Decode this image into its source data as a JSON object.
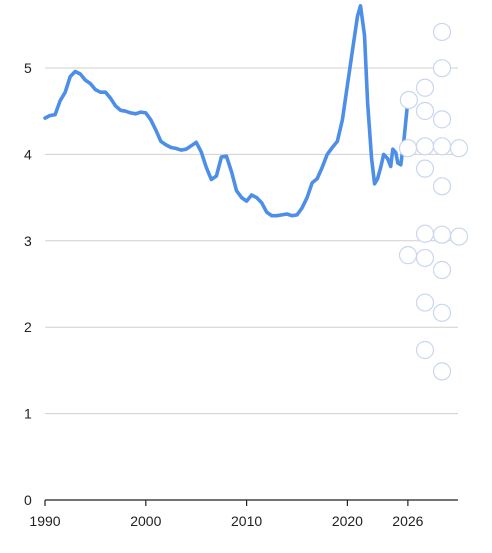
{
  "chart_data": {
    "type": "line",
    "title": "",
    "xlabel": "",
    "ylabel": "",
    "xlim": [
      1990,
      2026.5
    ],
    "ylim": [
      0,
      5.75
    ],
    "grid": true,
    "x_ticks": [
      {
        "value": 1990,
        "label": "1990"
      },
      {
        "value": 2000,
        "label": "2000"
      },
      {
        "value": 2010,
        "label": "2010"
      },
      {
        "value": 2020,
        "label": "2020"
      },
      {
        "value": 2026,
        "label": "2026"
      }
    ],
    "y_ticks": [
      {
        "value": 0,
        "label": "0"
      },
      {
        "value": 1,
        "label": "1"
      },
      {
        "value": 2,
        "label": "2"
      },
      {
        "value": 3,
        "label": "3"
      },
      {
        "value": 4,
        "label": "4"
      },
      {
        "value": 5,
        "label": "5"
      }
    ],
    "series": [
      {
        "color": "#4d8fe8",
        "points": [
          [
            1990,
            4.42
          ],
          [
            1990.5,
            4.45
          ],
          [
            1991,
            4.46
          ],
          [
            1991.5,
            4.62
          ],
          [
            1992,
            4.72
          ],
          [
            1992.5,
            4.9
          ],
          [
            1993,
            4.96
          ],
          [
            1993.5,
            4.93
          ],
          [
            1994,
            4.86
          ],
          [
            1994.5,
            4.82
          ],
          [
            1995,
            4.75
          ],
          [
            1995.5,
            4.72
          ],
          [
            1996,
            4.72
          ],
          [
            1996.5,
            4.65
          ],
          [
            1997,
            4.56
          ],
          [
            1997.5,
            4.51
          ],
          [
            1998,
            4.5
          ],
          [
            1998.5,
            4.48
          ],
          [
            1999,
            4.47
          ],
          [
            1999.5,
            4.49
          ],
          [
            2000,
            4.48
          ],
          [
            2000.5,
            4.4
          ],
          [
            2001,
            4.28
          ],
          [
            2001.5,
            4.15
          ],
          [
            2002,
            4.11
          ],
          [
            2002.5,
            4.08
          ],
          [
            2003,
            4.07
          ],
          [
            2003.5,
            4.05
          ],
          [
            2004,
            4.06
          ],
          [
            2004.5,
            4.1
          ],
          [
            2005,
            4.14
          ],
          [
            2005.5,
            4.03
          ],
          [
            2006,
            3.85
          ],
          [
            2006.5,
            3.71
          ],
          [
            2007,
            3.75
          ],
          [
            2007.5,
            3.97
          ],
          [
            2008,
            3.98
          ],
          [
            2008.5,
            3.8
          ],
          [
            2009,
            3.58
          ],
          [
            2009.5,
            3.5
          ],
          [
            2010,
            3.46
          ],
          [
            2010.5,
            3.53
          ],
          [
            2011,
            3.5
          ],
          [
            2011.5,
            3.44
          ],
          [
            2012,
            3.33
          ],
          [
            2012.5,
            3.29
          ],
          [
            2013,
            3.29
          ],
          [
            2013.5,
            3.3
          ],
          [
            2014,
            3.31
          ],
          [
            2014.5,
            3.29
          ],
          [
            2015,
            3.3
          ],
          [
            2015.5,
            3.38
          ],
          [
            2016,
            3.5
          ],
          [
            2016.5,
            3.67
          ],
          [
            2017,
            3.72
          ],
          [
            2017.5,
            3.85
          ],
          [
            2018,
            4.0
          ],
          [
            2018.5,
            4.08
          ],
          [
            2019,
            4.15
          ],
          [
            2019.5,
            4.4
          ],
          [
            2020,
            4.8
          ],
          [
            2020.5,
            5.2
          ],
          [
            2021,
            5.6
          ],
          [
            2021.3,
            5.72
          ],
          [
            2021.7,
            5.38
          ],
          [
            2022,
            4.6
          ],
          [
            2022.4,
            3.95
          ],
          [
            2022.7,
            3.66
          ],
          [
            2023,
            3.72
          ],
          [
            2023.3,
            3.85
          ],
          [
            2023.6,
            4.0
          ],
          [
            2024,
            3.95
          ],
          [
            2024.3,
            3.86
          ],
          [
            2024.5,
            4.06
          ],
          [
            2024.8,
            4.02
          ],
          [
            2025,
            3.9
          ],
          [
            2025.3,
            3.88
          ],
          [
            2025.6,
            4.15
          ],
          [
            2026,
            4.63
          ]
        ]
      }
    ],
    "endpoint_markers": [
      {
        "x": 2026,
        "y": 4.63,
        "flag": "united-kingdom"
      }
    ],
    "country_markers": [
      {
        "column": 1,
        "y": 4.09,
        "flag": "argentina"
      },
      {
        "column": 1,
        "y": 3.92,
        "flag": "belgium"
      },
      {
        "column": 2,
        "y": 3.92,
        "flag": "canada"
      },
      {
        "column": 2,
        "y": 3.42,
        "flag": "romania"
      },
      {
        "column": 1,
        "y": 2.82,
        "flag": "czech-republic"
      },
      {
        "column": 2,
        "y": 3.03,
        "flag": "germany"
      },
      {
        "column": 1,
        "y": 2.57,
        "flag": "spain"
      },
      {
        "column": 2,
        "y": 2.48,
        "flag": "turkey"
      },
      {
        "column": 0,
        "y": 2.17,
        "flag": "greece"
      },
      {
        "column": 1,
        "y": 2.19,
        "flag": "ireland"
      },
      {
        "column": 2,
        "y": 2.19,
        "flag": "denmark"
      },
      {
        "column": 3,
        "y": 2.17,
        "flag": "italy"
      },
      {
        "column": 1,
        "y": 1.95,
        "flag": "poland"
      },
      {
        "column": 2,
        "y": 1.76,
        "flag": "austria"
      },
      {
        "column": 1,
        "y": 1.25,
        "flag": "united-states"
      },
      {
        "column": 2,
        "y": 1.24,
        "flag": "france"
      },
      {
        "column": 3,
        "y": 1.22,
        "flag": "japan"
      },
      {
        "column": 0,
        "y": 1.02,
        "flag": "switzerland"
      },
      {
        "column": 1,
        "y": 0.99,
        "flag": "finland"
      },
      {
        "column": 2,
        "y": 0.86,
        "flag": "portugal"
      },
      {
        "column": 1,
        "y": 0.51,
        "flag": "south-korea"
      },
      {
        "column": 2,
        "y": 0.4,
        "flag": "australia"
      },
      {
        "column": 1,
        "y": 0.0,
        "flag": "netherlands"
      },
      {
        "column": 2,
        "y": -0.23,
        "flag": "sweden"
      }
    ]
  }
}
